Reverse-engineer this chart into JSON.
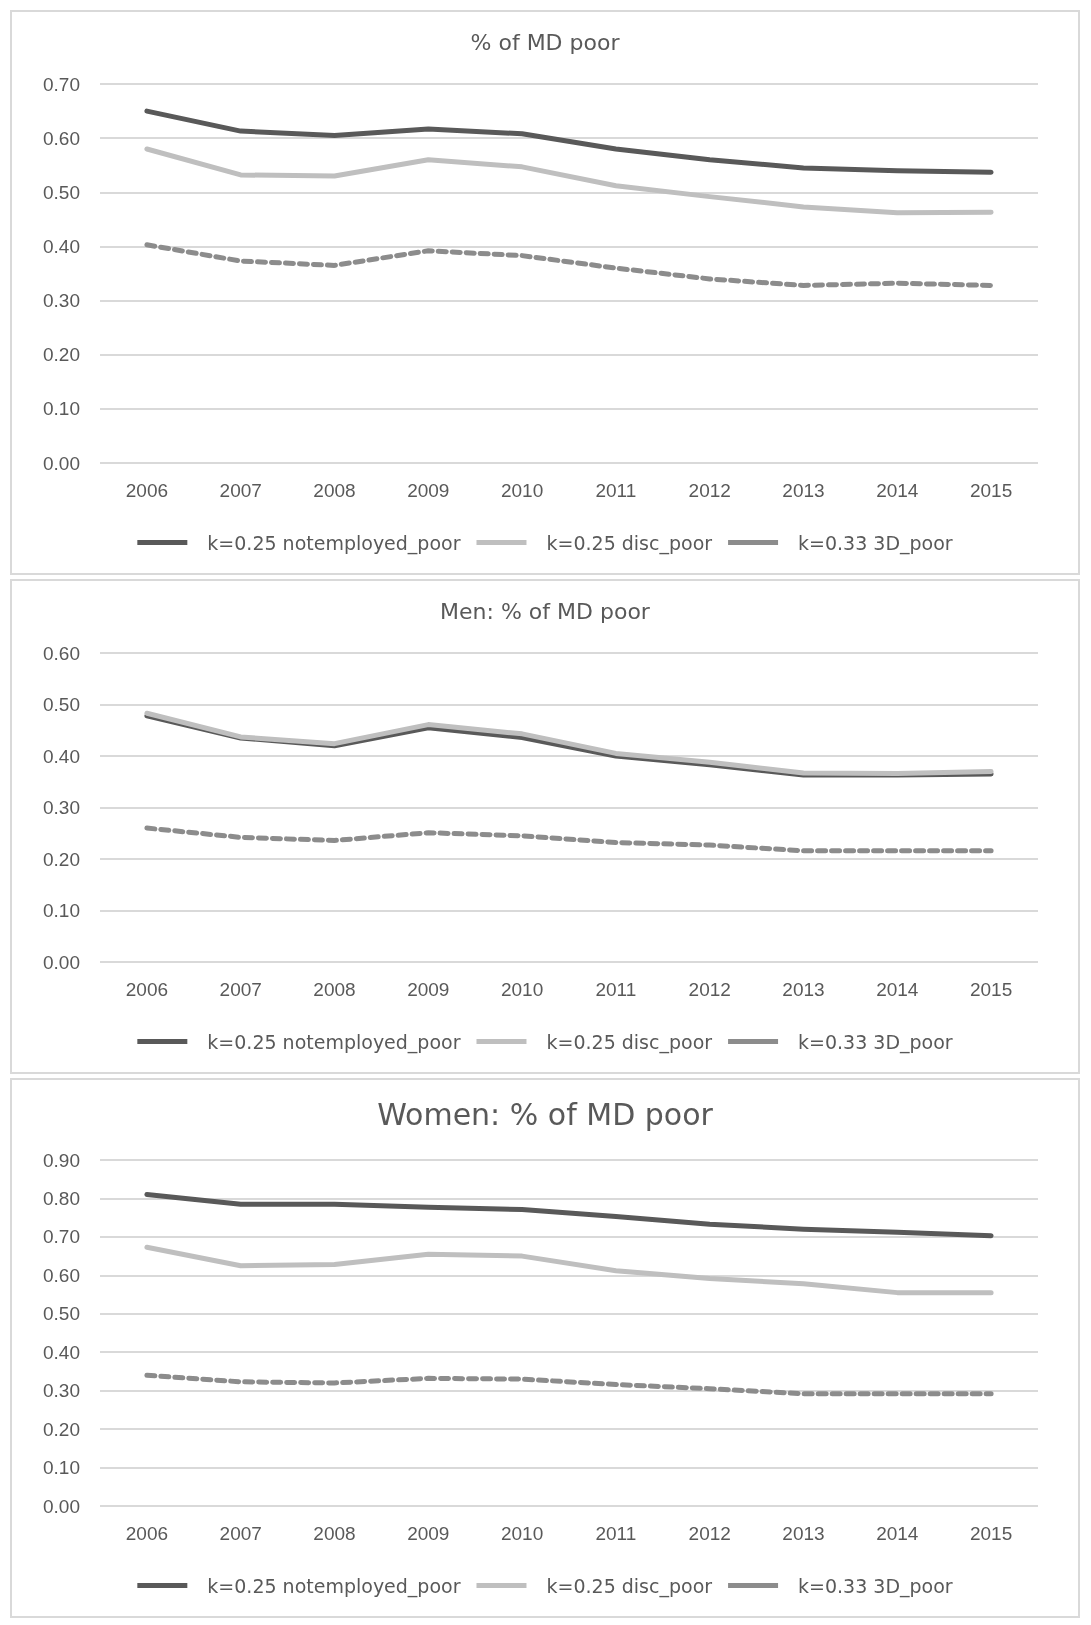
{
  "chart_data": [
    {
      "type": "line",
      "title": "% of MD poor",
      "categories": [
        "2006",
        "2007",
        "2008",
        "2009",
        "2010",
        "2011",
        "2012",
        "2013",
        "2014",
        "2015"
      ],
      "ylim": [
        0,
        0.7
      ],
      "yticks": [
        {
          "value": 0,
          "label": "0.00"
        },
        {
          "value": 0.1,
          "label": "0.10"
        },
        {
          "value": 0.2,
          "label": "0.20"
        },
        {
          "value": 0.3,
          "label": "0.30"
        },
        {
          "value": 0.4,
          "label": "0.40"
        },
        {
          "value": 0.5,
          "label": "0.50"
        },
        {
          "value": 0.6,
          "label": "0.60"
        },
        {
          "value": 0.7,
          "label": "0.70"
        }
      ],
      "grid": "y",
      "legend": "bottom",
      "marker": "none",
      "series": [
        {
          "name": "k=0.25 notemployed_poor",
          "color": "#595959",
          "line_style": "solid",
          "values": [
            0.65,
            0.613,
            0.605,
            0.617,
            0.608,
            0.58,
            0.56,
            0.545,
            0.54,
            0.537
          ]
        },
        {
          "name": "k=0.25 disc_poor",
          "color": "#bfbfbf",
          "line_style": "solid",
          "values": [
            0.58,
            0.532,
            0.53,
            0.56,
            0.547,
            0.512,
            0.492,
            0.473,
            0.462,
            0.463
          ]
        },
        {
          "name": "k=0.33 3D_poor",
          "color": "#8c8c8c",
          "line_style": "dashed",
          "values": [
            0.403,
            0.373,
            0.365,
            0.392,
            0.383,
            0.36,
            0.34,
            0.328,
            0.332,
            0.328
          ]
        }
      ]
    },
    {
      "type": "line",
      "title": "Men: % of MD poor",
      "categories": [
        "2006",
        "2007",
        "2008",
        "2009",
        "2010",
        "2011",
        "2012",
        "2013",
        "2014",
        "2015"
      ],
      "ylim": [
        0,
        0.6
      ],
      "yticks": [
        {
          "value": 0,
          "label": "0.00"
        },
        {
          "value": 0.1,
          "label": "0.10"
        },
        {
          "value": 0.2,
          "label": "0.20"
        },
        {
          "value": 0.3,
          "label": "0.30"
        },
        {
          "value": 0.4,
          "label": "0.40"
        },
        {
          "value": 0.5,
          "label": "0.50"
        },
        {
          "value": 0.6,
          "label": "0.60"
        }
      ],
      "grid": "y",
      "legend": "bottom",
      "marker": "none",
      "series": [
        {
          "name": "k=0.25 notemployed_poor",
          "color": "#595959",
          "line_style": "solid",
          "values": [
            0.478,
            0.435,
            0.42,
            0.455,
            0.436,
            0.4,
            0.383,
            0.363,
            0.363,
            0.365
          ]
        },
        {
          "name": "k=0.25 disc_poor",
          "color": "#bfbfbf",
          "line_style": "solid",
          "values": [
            0.483,
            0.437,
            0.424,
            0.461,
            0.443,
            0.405,
            0.388,
            0.367,
            0.366,
            0.37
          ]
        },
        {
          "name": "k=0.33 3D_poor",
          "color": "#8c8c8c",
          "line_style": "dashed",
          "values": [
            0.26,
            0.242,
            0.236,
            0.251,
            0.245,
            0.232,
            0.227,
            0.216,
            0.216,
            0.216
          ]
        }
      ]
    },
    {
      "type": "line",
      "title": "Women: % of MD poor",
      "categories": [
        "2006",
        "2007",
        "2008",
        "2009",
        "2010",
        "2011",
        "2012",
        "2013",
        "2014",
        "2015"
      ],
      "ylim": [
        0,
        0.9
      ],
      "yticks": [
        {
          "value": 0,
          "label": "0.00"
        },
        {
          "value": 0.1,
          "label": "0.10"
        },
        {
          "value": 0.2,
          "label": "0.20"
        },
        {
          "value": 0.3,
          "label": "0.30"
        },
        {
          "value": 0.4,
          "label": "0.40"
        },
        {
          "value": 0.5,
          "label": "0.50"
        },
        {
          "value": 0.6,
          "label": "0.60"
        },
        {
          "value": 0.7,
          "label": "0.70"
        },
        {
          "value": 0.8,
          "label": "0.80"
        },
        {
          "value": 0.9,
          "label": "0.90"
        }
      ],
      "grid": "y",
      "legend": "bottom",
      "marker": "none",
      "series": [
        {
          "name": "k=0.25 notemployed_poor",
          "color": "#595959",
          "line_style": "solid",
          "values": [
            0.81,
            0.785,
            0.785,
            0.777,
            0.771,
            0.753,
            0.733,
            0.72,
            0.712,
            0.703
          ]
        },
        {
          "name": "k=0.25 disc_poor",
          "color": "#bfbfbf",
          "line_style": "solid",
          "values": [
            0.673,
            0.625,
            0.628,
            0.655,
            0.65,
            0.612,
            0.592,
            0.578,
            0.555,
            0.555
          ]
        },
        {
          "name": "k=0.33 3D_poor",
          "color": "#8c8c8c",
          "line_style": "dashed",
          "values": [
            0.34,
            0.323,
            0.32,
            0.332,
            0.33,
            0.316,
            0.305,
            0.292,
            0.292,
            0.292
          ]
        }
      ]
    }
  ]
}
